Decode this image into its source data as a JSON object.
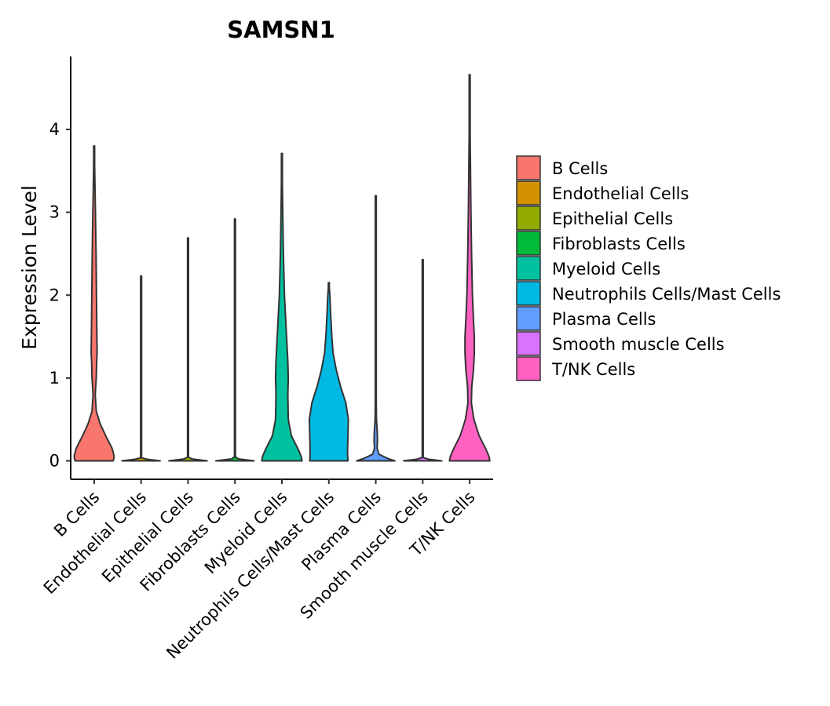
{
  "chart_data": {
    "type": "violin",
    "title": "SAMSN1",
    "xlabel": "",
    "ylabel": "Expression Level",
    "ylim": [
      -0.22,
      4.88
    ],
    "yticks": [
      0,
      1,
      2,
      3,
      4
    ],
    "categories": [
      "B Cells",
      "Endothelial Cells",
      "Epithelial Cells",
      "Fibroblasts Cells",
      "Myeloid Cells",
      "Neutrophils Cells/Mast Cells",
      "Plasma Cells",
      "Smooth muscle Cells",
      "T/NK Cells"
    ],
    "series": [
      {
        "name": "B Cells",
        "color": "#F8766D",
        "max": 3.8,
        "profile": [
          [
            0,
            0.9
          ],
          [
            0.05,
            0.95
          ],
          [
            0.15,
            0.85
          ],
          [
            0.3,
            0.55
          ],
          [
            0.45,
            0.28
          ],
          [
            0.6,
            0.1
          ],
          [
            0.8,
            0.05
          ],
          [
            1.0,
            0.1
          ],
          [
            1.2,
            0.12
          ],
          [
            1.3,
            0.14
          ],
          [
            1.5,
            0.13
          ],
          [
            2.0,
            0.11
          ],
          [
            2.5,
            0.09
          ],
          [
            3.0,
            0.06
          ],
          [
            3.3,
            0.04
          ],
          [
            3.6,
            0.02
          ],
          [
            3.8,
            0.0
          ]
        ]
      },
      {
        "name": "Endothelial Cells",
        "color": "#D39200",
        "max": 2.23,
        "profile": [
          [
            0,
            0.9
          ],
          [
            0.01,
            0.5
          ],
          [
            0.03,
            0.02
          ],
          [
            0.5,
            0.015
          ],
          [
            2.0,
            0.01
          ],
          [
            2.23,
            0.0
          ]
        ]
      },
      {
        "name": "Epithelial Cells",
        "color": "#93AA00",
        "max": 2.69,
        "profile": [
          [
            0,
            0.9
          ],
          [
            0.01,
            0.5
          ],
          [
            0.03,
            0.02
          ],
          [
            0.5,
            0.015
          ],
          [
            2.4,
            0.01
          ],
          [
            2.69,
            0.0
          ]
        ]
      },
      {
        "name": "Fibroblasts Cells",
        "color": "#00BA38",
        "max": 2.92,
        "profile": [
          [
            0,
            0.9
          ],
          [
            0.01,
            0.5
          ],
          [
            0.03,
            0.02
          ],
          [
            0.5,
            0.015
          ],
          [
            2.6,
            0.01
          ],
          [
            2.92,
            0.0
          ]
        ]
      },
      {
        "name": "Myeloid Cells",
        "color": "#00C19F",
        "max": 3.71,
        "profile": [
          [
            0,
            0.95
          ],
          [
            0.05,
            0.92
          ],
          [
            0.15,
            0.75
          ],
          [
            0.3,
            0.45
          ],
          [
            0.5,
            0.3
          ],
          [
            0.8,
            0.28
          ],
          [
            1.0,
            0.3
          ],
          [
            1.2,
            0.28
          ],
          [
            1.5,
            0.22
          ],
          [
            2.0,
            0.12
          ],
          [
            2.5,
            0.07
          ],
          [
            3.0,
            0.04
          ],
          [
            3.4,
            0.02
          ],
          [
            3.71,
            0.0
          ]
        ]
      },
      {
        "name": "Neutrophils Cells/Mast Cells",
        "color": "#00B9E3",
        "max": 2.15,
        "profile": [
          [
            0,
            0.9
          ],
          [
            0.1,
            0.88
          ],
          [
            0.3,
            0.9
          ],
          [
            0.5,
            0.92
          ],
          [
            0.7,
            0.8
          ],
          [
            0.9,
            0.55
          ],
          [
            1.1,
            0.35
          ],
          [
            1.3,
            0.2
          ],
          [
            1.5,
            0.14
          ],
          [
            1.8,
            0.08
          ],
          [
            2.0,
            0.05
          ],
          [
            2.15,
            0.0
          ]
        ]
      },
      {
        "name": "Plasma Cells",
        "color": "#619CFF",
        "max": 3.2,
        "profile": [
          [
            0,
            0.9
          ],
          [
            0.03,
            0.55
          ],
          [
            0.08,
            0.15
          ],
          [
            0.15,
            0.06
          ],
          [
            0.25,
            0.08
          ],
          [
            0.35,
            0.07
          ],
          [
            0.5,
            0.03
          ],
          [
            0.8,
            0.02
          ],
          [
            2.0,
            0.015
          ],
          [
            3.2,
            0.0
          ]
        ]
      },
      {
        "name": "Smooth muscle Cells",
        "color": "#DB72FB",
        "max": 2.43,
        "profile": [
          [
            0,
            0.9
          ],
          [
            0.01,
            0.5
          ],
          [
            0.03,
            0.02
          ],
          [
            0.5,
            0.015
          ],
          [
            2.2,
            0.01
          ],
          [
            2.43,
            0.0
          ]
        ]
      },
      {
        "name": "T/NK Cells",
        "color": "#FF61C3",
        "max": 4.66,
        "profile": [
          [
            0,
            0.95
          ],
          [
            0.05,
            0.92
          ],
          [
            0.15,
            0.75
          ],
          [
            0.3,
            0.45
          ],
          [
            0.5,
            0.2
          ],
          [
            0.7,
            0.08
          ],
          [
            0.9,
            0.1
          ],
          [
            1.1,
            0.18
          ],
          [
            1.3,
            0.22
          ],
          [
            1.5,
            0.22
          ],
          [
            1.7,
            0.18
          ],
          [
            2.0,
            0.13
          ],
          [
            2.5,
            0.09
          ],
          [
            3.0,
            0.06
          ],
          [
            3.5,
            0.04
          ],
          [
            4.0,
            0.02
          ],
          [
            4.66,
            0.0
          ]
        ]
      }
    ],
    "legend": {
      "position": "right",
      "entries": [
        "B Cells",
        "Endothelial Cells",
        "Epithelial Cells",
        "Fibroblasts Cells",
        "Myeloid Cells",
        "Neutrophils Cells/Mast Cells",
        "Plasma Cells",
        "Smooth muscle Cells",
        "T/NK Cells"
      ]
    },
    "grid": false
  }
}
